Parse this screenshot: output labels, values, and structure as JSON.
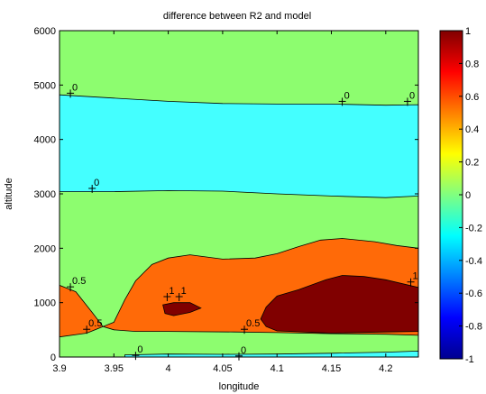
{
  "chart_data": {
    "type": "contour",
    "title": "difference between R2 and model",
    "xlabel": "longitude",
    "ylabel": "altitude",
    "xlim": [
      3.9,
      4.23
    ],
    "ylim": [
      0,
      6000
    ],
    "xticks": [
      {
        "value": 3.9,
        "label": "3.9"
      },
      {
        "value": 3.95,
        "label": "3.95"
      },
      {
        "value": 4.0,
        "label": "4"
      },
      {
        "value": 4.05,
        "label": "4.05"
      },
      {
        "value": 4.1,
        "label": "4.1"
      },
      {
        "value": 4.15,
        "label": "4.15"
      },
      {
        "value": 4.2,
        "label": "4.2"
      }
    ],
    "yticks": [
      {
        "value": 0,
        "label": "0"
      },
      {
        "value": 1000,
        "label": "1000"
      },
      {
        "value": 2000,
        "label": "2000"
      },
      {
        "value": 3000,
        "label": "3000"
      },
      {
        "value": 4000,
        "label": "4000"
      },
      {
        "value": 5000,
        "label": "5000"
      },
      {
        "value": 6000,
        "label": "6000"
      }
    ],
    "colorbar": {
      "range": [
        -1,
        1
      ],
      "ticks": [
        {
          "value": 1,
          "label": "1"
        },
        {
          "value": 0.8,
          "label": "0.8"
        },
        {
          "value": 0.6,
          "label": "0.6"
        },
        {
          "value": 0.4,
          "label": "0.4"
        },
        {
          "value": 0.2,
          "label": "0.2"
        },
        {
          "value": 0,
          "label": "0"
        },
        {
          "value": -0.2,
          "label": "-0.2"
        },
        {
          "value": -0.4,
          "label": "-0.4"
        },
        {
          "value": -0.6,
          "label": "-0.6"
        },
        {
          "value": -0.8,
          "label": "-0.8"
        },
        {
          "value": -1,
          "label": "-1"
        }
      ],
      "colors": [
        "#00008f",
        "#0000ff",
        "#0080ff",
        "#00ffff",
        "#80ff80",
        "#ffff00",
        "#ff8000",
        "#ff0000",
        "#800000"
      ]
    },
    "regions": [
      {
        "name": "background",
        "level": 0,
        "color": "#8dfd6f",
        "points": [
          [
            3.9,
            0
          ],
          [
            4.23,
            0
          ],
          [
            4.23,
            6000
          ],
          [
            3.9,
            6000
          ]
        ]
      },
      {
        "name": "upper-negative-band",
        "level": -0.5,
        "color": "#44ffff",
        "points": [
          [
            3.9,
            4820
          ],
          [
            3.95,
            4760
          ],
          [
            4.0,
            4700
          ],
          [
            4.05,
            4660
          ],
          [
            4.1,
            4650
          ],
          [
            4.15,
            4650
          ],
          [
            4.2,
            4630
          ],
          [
            4.23,
            4640
          ],
          [
            4.23,
            2960
          ],
          [
            4.2,
            2930
          ],
          [
            4.15,
            2960
          ],
          [
            4.1,
            3000
          ],
          [
            4.05,
            3050
          ],
          [
            4.0,
            3060
          ],
          [
            3.95,
            3040
          ],
          [
            3.9,
            3040
          ]
        ]
      },
      {
        "name": "orange-region",
        "level": 0.5,
        "color": "#ff6a08",
        "points": [
          [
            3.9,
            1320
          ],
          [
            3.915,
            1200
          ],
          [
            3.93,
            820
          ],
          [
            3.94,
            560
          ],
          [
            3.95,
            640
          ],
          [
            3.96,
            1050
          ],
          [
            3.97,
            1400
          ],
          [
            3.985,
            1700
          ],
          [
            4.0,
            1820
          ],
          [
            4.02,
            1880
          ],
          [
            4.05,
            1800
          ],
          [
            4.08,
            1820
          ],
          [
            4.1,
            1900
          ],
          [
            4.12,
            2030
          ],
          [
            4.14,
            2150
          ],
          [
            4.16,
            2180
          ],
          [
            4.19,
            2120
          ],
          [
            4.21,
            2050
          ],
          [
            4.23,
            2000
          ],
          [
            4.23,
            400
          ],
          [
            4.2,
            420
          ],
          [
            4.15,
            430
          ],
          [
            4.1,
            450
          ],
          [
            4.06,
            460
          ],
          [
            4.0,
            470
          ],
          [
            3.97,
            470
          ],
          [
            3.95,
            500
          ],
          [
            3.94,
            560
          ],
          [
            3.925,
            440
          ],
          [
            3.9,
            370
          ]
        ]
      },
      {
        "name": "dark-red-blob-small",
        "level": 1,
        "color": "#800000",
        "points": [
          [
            3.995,
            960
          ],
          [
            4.005,
            1000
          ],
          [
            4.02,
            1000
          ],
          [
            4.03,
            900
          ],
          [
            4.02,
            820
          ],
          [
            4.005,
            760
          ],
          [
            3.997,
            800
          ]
        ]
      },
      {
        "name": "dark-red-blob-large",
        "level": 1,
        "color": "#800000",
        "points": [
          [
            4.09,
            920
          ],
          [
            4.1,
            1120
          ],
          [
            4.12,
            1240
          ],
          [
            4.145,
            1420
          ],
          [
            4.16,
            1500
          ],
          [
            4.18,
            1480
          ],
          [
            4.2,
            1420
          ],
          [
            4.23,
            1280
          ],
          [
            4.23,
            470
          ],
          [
            4.2,
            460
          ],
          [
            4.15,
            440
          ],
          [
            4.1,
            480
          ],
          [
            4.09,
            560
          ],
          [
            4.085,
            700
          ]
        ]
      },
      {
        "name": "bottom-cyan-band",
        "level": -0.5,
        "color": "#44ffff",
        "points": [
          [
            3.96,
            40
          ],
          [
            4.0,
            55
          ],
          [
            4.05,
            50
          ],
          [
            4.1,
            55
          ],
          [
            4.15,
            70
          ],
          [
            4.2,
            90
          ],
          [
            4.23,
            110
          ],
          [
            4.23,
            0
          ],
          [
            3.96,
            0
          ]
        ]
      }
    ],
    "contour_labels": [
      {
        "text": "0",
        "x": 3.91,
        "y": 4900
      },
      {
        "text": "0",
        "x": 4.16,
        "y": 4750
      },
      {
        "text": "0",
        "x": 4.22,
        "y": 4750
      },
      {
        "text": "0",
        "x": 3.93,
        "y": 3150
      },
      {
        "text": "0.5",
        "x": 3.91,
        "y": 1340
      },
      {
        "text": "1",
        "x": 3.999,
        "y": 1160
      },
      {
        "text": "1",
        "x": 4.01,
        "y": 1160
      },
      {
        "text": "1",
        "x": 4.223,
        "y": 1430
      },
      {
        "text": "0.5",
        "x": 3.925,
        "y": 560
      },
      {
        "text": "0.5",
        "x": 4.07,
        "y": 560
      },
      {
        "text": "0",
        "x": 3.97,
        "y": 80
      },
      {
        "text": "0",
        "x": 4.065,
        "y": 70
      }
    ]
  }
}
